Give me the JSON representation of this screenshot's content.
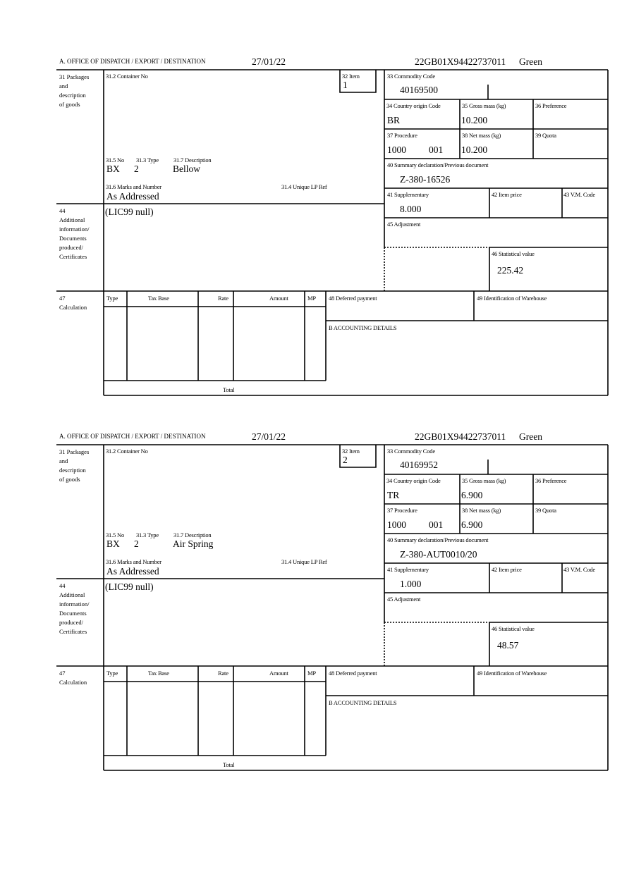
{
  "labels": {
    "office": "A.  OFFICE OF DISPATCH / EXPORT / DESTINATION",
    "box31": "31 Packages\nand\ndescription\nof goods",
    "container": "31.2 Container No",
    "item": "32 Item",
    "commodity": "33 Commodity Code",
    "country": "34 Country origin Code",
    "gross": "35 Gross mass (kg)",
    "preference": "36 Preference",
    "procedure": "37 Procedure",
    "net": "38 Net mass (kg)",
    "quota": "39 Quota",
    "summary": "40 Summary declaration/Previous document",
    "supplementary": "41 Supplementary",
    "item_price": "42 Item price",
    "vm_code": "43 V.M. Code",
    "adjustment": "45 Adjustment",
    "statistical": "46 Statistical value",
    "no": "31.5 No",
    "type": "31.3 Type",
    "description": "31.7 Description",
    "marks": "31.6 Marks and Number",
    "unique_ref": "31.4 Unique LP Ref",
    "box44": "44\nAdditional\ninformation/\nDocuments\nproduced/\nCertificates",
    "box47": "47\nCalculation",
    "calc_type": "Type",
    "calc_tax_base": "Tax Base",
    "calc_rate": "Rate",
    "calc_amount": "Amount",
    "calc_mp": "MP",
    "deferred": "48 Deferred payment",
    "warehouse": "49 Identification of Warehouse",
    "accounting": "B ACCOUNTING DETAILS",
    "total": "Total"
  },
  "forms": [
    {
      "date": "27/01/22",
      "reference": "22GB01X94422737011",
      "route": "Green",
      "item": "1",
      "commodity_code": "40169500",
      "country": "BR",
      "gross_mass": "10.200",
      "procedure": "1000",
      "procedure_extra": "001",
      "net_mass": "10.200",
      "summary_doc": "Z-380-16526",
      "supplementary": "8.000",
      "statistical_value": "225.42",
      "packages_no": "BX",
      "packages_type": "2",
      "description": "Bellow",
      "marks": "As Addressed",
      "additional_info": "(LIC99 null)"
    },
    {
      "date": "27/01/22",
      "reference": "22GB01X94422737011",
      "route": "Green",
      "item": "2",
      "commodity_code": "40169952",
      "country": "TR",
      "gross_mass": "6.900",
      "procedure": "1000",
      "procedure_extra": "001",
      "net_mass": "6.900",
      "summary_doc": "Z-380-AUT0010/20",
      "supplementary": "1.000",
      "statistical_value": "48.57",
      "packages_no": "BX",
      "packages_type": "2",
      "description": "Air Spring",
      "marks": "As Addressed",
      "additional_info": "(LIC99 null)"
    }
  ]
}
